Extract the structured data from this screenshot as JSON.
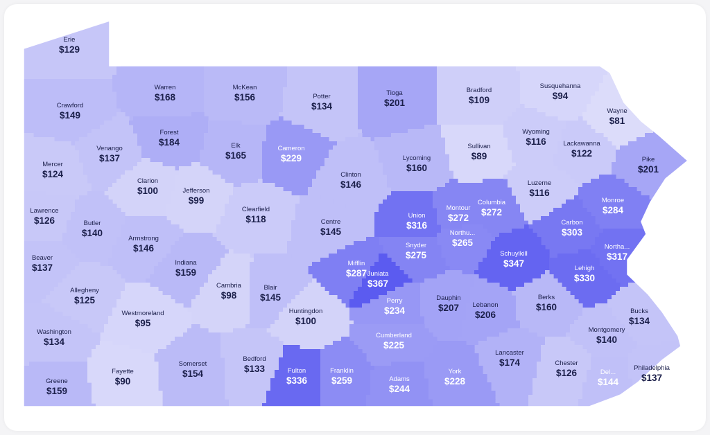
{
  "colors": {
    "scale_low": "#dcdcfa",
    "scale_high": "#5b5bf0",
    "border": "#ffffff",
    "text_dark": "#1b1f4a",
    "text_light": "#ffffff"
  },
  "counties": [
    {
      "name": "Erie",
      "value": 129
    },
    {
      "name": "Crawford",
      "value": 149
    },
    {
      "name": "Warren",
      "value": 168
    },
    {
      "name": "McKean",
      "value": 156
    },
    {
      "name": "Potter",
      "value": 134
    },
    {
      "name": "Tioga",
      "value": 201
    },
    {
      "name": "Bradford",
      "value": 109
    },
    {
      "name": "Susquehanna",
      "value": 94
    },
    {
      "name": "Wayne",
      "value": 81
    },
    {
      "name": "Mercer",
      "value": 124
    },
    {
      "name": "Venango",
      "value": 137
    },
    {
      "name": "Forest",
      "value": 184
    },
    {
      "name": "Elk",
      "value": 165
    },
    {
      "name": "Cameron",
      "value": 229
    },
    {
      "name": "Clinton",
      "value": 146
    },
    {
      "name": "Lycoming",
      "value": 160
    },
    {
      "name": "Sullivan",
      "value": 89
    },
    {
      "name": "Wyoming",
      "value": 116
    },
    {
      "name": "Lackawanna",
      "value": 122
    },
    {
      "name": "Pike",
      "value": 201
    },
    {
      "name": "Lawrence",
      "value": 126
    },
    {
      "name": "Clarion",
      "value": 100
    },
    {
      "name": "Jefferson",
      "value": 99
    },
    {
      "name": "Clearfield",
      "value": 118
    },
    {
      "name": "Centre",
      "value": 145
    },
    {
      "name": "Union",
      "value": 316
    },
    {
      "name": "Montour",
      "value": 272
    },
    {
      "name": "Columbia",
      "value": 272
    },
    {
      "name": "Luzerne",
      "value": 116
    },
    {
      "name": "Monroe",
      "value": 284
    },
    {
      "name": "Butler",
      "value": 140
    },
    {
      "name": "Armstrong",
      "value": 146
    },
    {
      "name": "Beaver",
      "value": 137
    },
    {
      "name": "Indiana",
      "value": 159
    },
    {
      "name": "Northu...",
      "value": 265
    },
    {
      "name": "Snyder",
      "value": 275
    },
    {
      "name": "Carbon",
      "value": 303
    },
    {
      "name": "Northa...",
      "value": 317
    },
    {
      "name": "Schuylkill",
      "value": 347
    },
    {
      "name": "Mifflin",
      "value": 287
    },
    {
      "name": "Juniata",
      "value": 367
    },
    {
      "name": "Lehigh",
      "value": 330
    },
    {
      "name": "Allegheny",
      "value": 125
    },
    {
      "name": "Cambria",
      "value": 98
    },
    {
      "name": "Blair",
      "value": 145
    },
    {
      "name": "Huntingdon",
      "value": 100
    },
    {
      "name": "Perry",
      "value": 234
    },
    {
      "name": "Dauphin",
      "value": 207
    },
    {
      "name": "Lebanon",
      "value": 206
    },
    {
      "name": "Berks",
      "value": 160
    },
    {
      "name": "Bucks",
      "value": 134
    },
    {
      "name": "Westmoreland",
      "value": 95
    },
    {
      "name": "Washington",
      "value": 134
    },
    {
      "name": "Montgomery",
      "value": 140
    },
    {
      "name": "Cumberland",
      "value": 225
    },
    {
      "name": "Lancaster",
      "value": 174
    },
    {
      "name": "Somerset",
      "value": 154
    },
    {
      "name": "Bedford",
      "value": 133
    },
    {
      "name": "Fulton",
      "value": 336
    },
    {
      "name": "Franklin",
      "value": 259
    },
    {
      "name": "Adams",
      "value": 244
    },
    {
      "name": "York",
      "value": 228
    },
    {
      "name": "Chester",
      "value": 126
    },
    {
      "name": "Del...",
      "value": 144
    },
    {
      "name": "Philadelphia",
      "value": 137
    },
    {
      "name": "Greene",
      "value": 159
    },
    {
      "name": "Fayette",
      "value": 90
    }
  ],
  "value_prefix": "$"
}
